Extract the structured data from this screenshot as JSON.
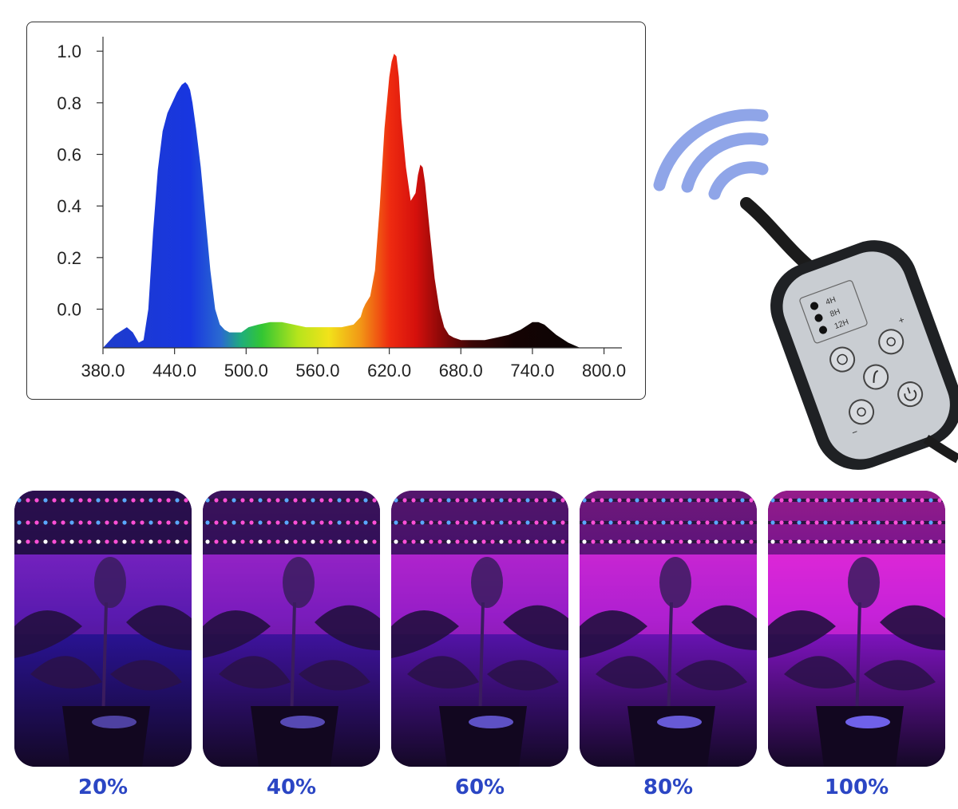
{
  "chart_data": {
    "type": "area",
    "title": "",
    "xlabel": "",
    "ylabel": "",
    "xlim": [
      380,
      815
    ],
    "ylim": [
      -0.15,
      1.05
    ],
    "xticks": [
      380,
      440,
      500,
      560,
      620,
      680,
      740,
      800
    ],
    "xtick_labels": [
      "380.0",
      "440.0",
      "500.0",
      "560.0",
      "620.0",
      "680.0",
      "740.0",
      "800.0"
    ],
    "yticks": [
      0.0,
      0.2,
      0.4,
      0.6,
      0.8,
      1.0
    ],
    "ytick_labels": [
      "0.0",
      "0.2",
      "0.4",
      "0.6",
      "0.8",
      "1.0"
    ],
    "grid": false,
    "series": [
      {
        "x": [
          380,
          390,
          400,
          405,
          410,
          414,
          418,
          422,
          426,
          430,
          434,
          438,
          442,
          446,
          449,
          451,
          453,
          455,
          458,
          462,
          466,
          470,
          474,
          478,
          482,
          486,
          490,
          496,
          502,
          510,
          520,
          530,
          540,
          550,
          560,
          570,
          580,
          590,
          596,
          598,
          600,
          604,
          608,
          612,
          616,
          620,
          622,
          624,
          626,
          628,
          630,
          634,
          638,
          642,
          644,
          646,
          648,
          650,
          654,
          658,
          662,
          666,
          670,
          674,
          680,
          690,
          700,
          710,
          720,
          730,
          740,
          745,
          750,
          755,
          760,
          770,
          780,
          790,
          800,
          810
        ],
        "y": [
          -0.15,
          -0.1,
          -0.07,
          -0.09,
          -0.13,
          -0.12,
          0.0,
          0.3,
          0.54,
          0.69,
          0.76,
          0.8,
          0.84,
          0.87,
          0.88,
          0.87,
          0.85,
          0.8,
          0.7,
          0.55,
          0.35,
          0.15,
          0.0,
          -0.06,
          -0.08,
          -0.09,
          -0.09,
          -0.09,
          -0.07,
          -0.06,
          -0.05,
          -0.05,
          -0.06,
          -0.07,
          -0.07,
          -0.07,
          -0.07,
          -0.06,
          -0.03,
          0.0,
          0.02,
          0.05,
          0.15,
          0.4,
          0.7,
          0.9,
          0.96,
          0.99,
          0.98,
          0.9,
          0.74,
          0.55,
          0.42,
          0.45,
          0.52,
          0.56,
          0.55,
          0.49,
          0.3,
          0.12,
          0.0,
          -0.07,
          -0.1,
          -0.11,
          -0.12,
          -0.12,
          -0.12,
          -0.11,
          -0.1,
          -0.08,
          -0.05,
          -0.05,
          -0.06,
          -0.08,
          -0.1,
          -0.13,
          -0.15,
          -0.15,
          -0.15,
          -0.15
        ]
      }
    ]
  },
  "photos": {
    "labels": [
      "20%",
      "40%",
      "60%",
      "80%",
      "100%"
    ],
    "brightness": [
      0.2,
      0.4,
      0.6,
      0.8,
      1.0
    ]
  },
  "remote": {
    "timer_labels": [
      "4H",
      "8H",
      "12H"
    ],
    "button_signs": [
      "+",
      "−"
    ]
  },
  "colors": {
    "label_blue": "#2b46c4",
    "wifi_waves": "#8fa5e8",
    "remote_body": "#1f2124",
    "remote_panel": "#c9cdd2"
  }
}
